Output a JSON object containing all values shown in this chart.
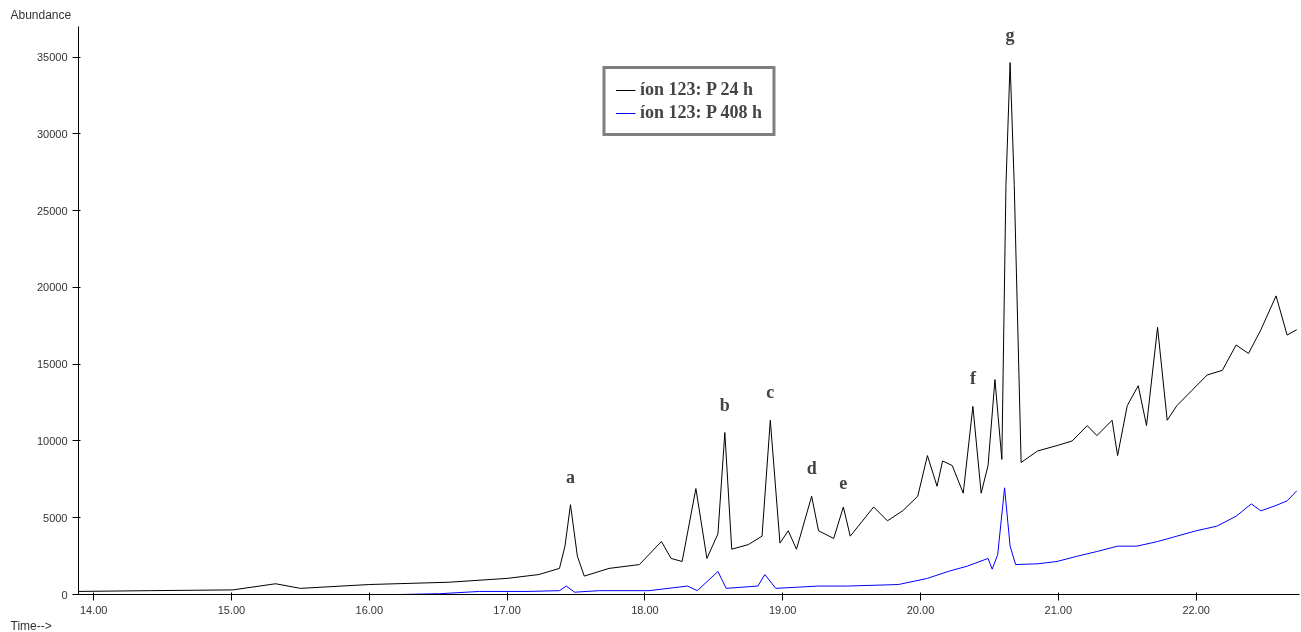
{
  "chart_data": {
    "type": "line",
    "xlabel": "Time-->",
    "ylabel": "Abundance",
    "xlim": [
      13.89,
      22.75
    ],
    "ylim": [
      0,
      37000
    ],
    "xticks": [
      {
        "value": 14,
        "label": "14.00"
      },
      {
        "value": 15,
        "label": "15.00"
      },
      {
        "value": 16,
        "label": "16.00"
      },
      {
        "value": 17,
        "label": "17.00"
      },
      {
        "value": 18,
        "label": "18.00"
      },
      {
        "value": 19,
        "label": "19.00"
      },
      {
        "value": 20,
        "label": "20.00"
      },
      {
        "value": 21,
        "label": "21.00"
      },
      {
        "value": 22,
        "label": "22.00"
      }
    ],
    "yticks": [
      0,
      5000,
      10000,
      15000,
      20000,
      25000,
      30000,
      35000
    ],
    "grid": false,
    "legend": "top",
    "marker": "none",
    "line_style": "solid",
    "series": [
      {
        "name": "íon 123: P 24 h",
        "color": "#000000",
        "x": [
          13.89,
          14.41,
          15.01,
          15.32,
          15.5,
          16.0,
          16.58,
          17.0,
          17.23,
          17.38,
          17.42,
          17.46,
          17.51,
          17.56,
          17.74,
          17.96,
          18.12,
          18.19,
          18.27,
          18.37,
          18.45,
          18.53,
          18.58,
          18.63,
          18.75,
          18.85,
          18.91,
          18.98,
          19.04,
          19.1,
          19.21,
          19.26,
          19.37,
          19.44,
          19.49,
          19.66,
          19.76,
          19.87,
          19.98,
          20.05,
          20.12,
          20.16,
          20.23,
          20.31,
          20.38,
          20.44,
          20.49,
          20.54,
          20.59,
          20.62,
          20.65,
          20.68,
          20.73,
          20.85,
          20.99,
          21.1,
          21.21,
          21.28,
          21.39,
          21.43,
          21.5,
          21.58,
          21.64,
          21.72,
          21.79,
          21.86,
          21.97,
          22.08,
          22.19,
          22.29,
          22.38,
          22.47,
          22.58,
          22.66,
          22.73
        ],
        "values": [
          200,
          250,
          300,
          700,
          400,
          650,
          800,
          1050,
          1300,
          1700,
          3150,
          5850,
          2500,
          1200,
          1700,
          1950,
          3450,
          2350,
          2150,
          6900,
          2350,
          3950,
          10550,
          2950,
          3250,
          3800,
          11350,
          3350,
          4150,
          2950,
          6400,
          4150,
          3650,
          5700,
          3800,
          5700,
          4800,
          5450,
          6400,
          9050,
          7050,
          8700,
          8400,
          6600,
          12250,
          6600,
          8400,
          14000,
          8800,
          26700,
          34650,
          26700,
          8600,
          9350,
          9700,
          10000,
          11000,
          10350,
          11350,
          9050,
          12300,
          13600,
          11000,
          17400,
          11350,
          12300,
          13300,
          14300,
          14600,
          16250,
          15700,
          17250,
          19450,
          16900,
          17250
        ]
      },
      {
        "name": "íon 123: P 408 h",
        "color": "#0000ff",
        "x": [
          13.89,
          16.22,
          16.51,
          16.8,
          17.16,
          17.38,
          17.43,
          17.49,
          17.67,
          18.03,
          18.31,
          18.38,
          18.53,
          18.59,
          18.82,
          18.87,
          18.95,
          19.26,
          19.47,
          19.84,
          20.05,
          20.2,
          20.34,
          20.49,
          20.52,
          20.56,
          20.61,
          20.65,
          20.69,
          20.85,
          20.99,
          21.14,
          21.28,
          21.43,
          21.57,
          21.72,
          21.86,
          22.0,
          22.15,
          22.29,
          22.4,
          22.47,
          22.58,
          22.66,
          22.73
        ],
        "values": [
          0,
          0,
          50,
          200,
          200,
          250,
          550,
          150,
          250,
          250,
          550,
          250,
          1500,
          400,
          550,
          1300,
          400,
          550,
          550,
          650,
          1050,
          1500,
          1850,
          2350,
          1650,
          2600,
          6950,
          3150,
          1950,
          2000,
          2150,
          2500,
          2800,
          3150,
          3150,
          3450,
          3800,
          4150,
          4450,
          5100,
          5900,
          5450,
          5800,
          6100,
          6750
        ]
      }
    ],
    "annotations": [
      {
        "text": "a",
        "x": 17.46,
        "y": 5850
      },
      {
        "text": "b",
        "x": 18.58,
        "y": 10550
      },
      {
        "text": "c",
        "x": 18.91,
        "y": 11350
      },
      {
        "text": "d",
        "x": 19.21,
        "y": 6400
      },
      {
        "text": "e",
        "x": 19.44,
        "y": 5700
      },
      {
        "text": "f",
        "x": 20.38,
        "y": 12250
      },
      {
        "text": "g",
        "x": 20.65,
        "y": 34650
      }
    ]
  }
}
